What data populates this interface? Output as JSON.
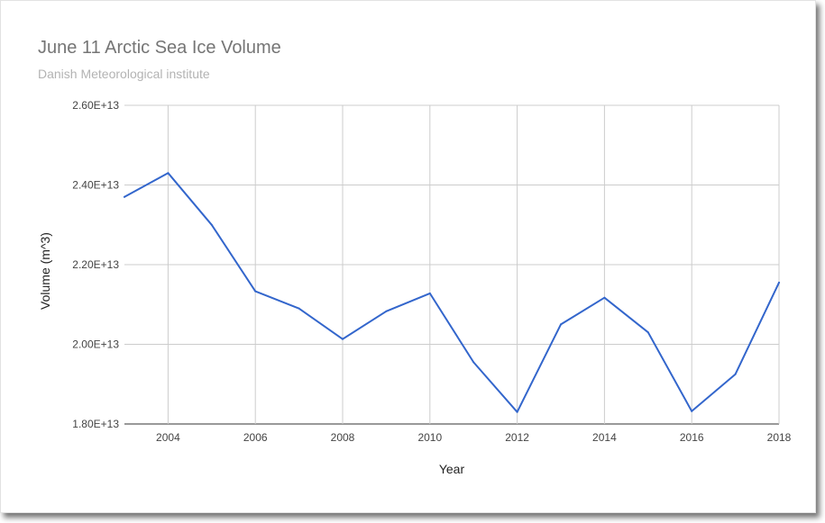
{
  "chart_data": {
    "type": "line",
    "title": "June 11 Arctic Sea Ice Volume",
    "subtitle": "Danish Meteorological institute",
    "xlabel": "Year",
    "ylabel": "Volume (m^3)",
    "xlim": [
      2003,
      2018
    ],
    "ylim": [
      18000000000000.0,
      26000000000000.0
    ],
    "x_ticks": [
      2004,
      2006,
      2008,
      2010,
      2012,
      2014,
      2016,
      2018
    ],
    "x_tick_labels": [
      "2004",
      "2006",
      "2008",
      "2010",
      "2012",
      "2014",
      "2016",
      "2018"
    ],
    "y_ticks": [
      18000000000000.0,
      20000000000000.0,
      22000000000000.0,
      24000000000000.0,
      26000000000000.0
    ],
    "y_tick_labels": [
      "1.80E+13",
      "2.00E+13",
      "2.20E+13",
      "2.40E+13",
      "2.60E+13"
    ],
    "grid": true,
    "line_color": "#3366cc",
    "series": [
      {
        "x": [
          2003,
          2004,
          2005,
          2006,
          2007,
          2008,
          2009,
          2010,
          2011,
          2012,
          2013,
          2014,
          2015,
          2016,
          2017,
          2018
        ],
        "values": [
          23700000000000.0,
          24300000000000.0,
          23000000000000.0,
          21330000000000.0,
          20900000000000.0,
          20130000000000.0,
          20830000000000.0,
          21280000000000.0,
          19550000000000.0,
          18300000000000.0,
          20500000000000.0,
          21170000000000.0,
          20300000000000.0,
          18320000000000.0,
          19250000000000.0,
          21550000000000.0
        ]
      }
    ]
  }
}
